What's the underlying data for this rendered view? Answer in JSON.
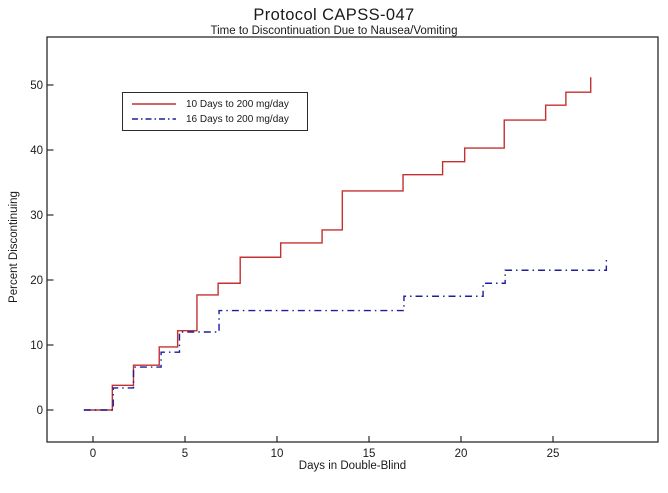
{
  "header": {
    "title": "Protocol CAPSS-047",
    "subtitle": "Time to Discontinuation Due to Nausea/Vomiting"
  },
  "chart_data": {
    "type": "line",
    "subtype": "step",
    "title": "Protocol CAPSS-047",
    "subtitle": "Time to Discontinuation Due to Nausea/Vomiting",
    "xlabel": "Days in Double-Blind",
    "ylabel": "Percent Discontinuing",
    "xlim": [
      0,
      25
    ],
    "ylim": [
      0,
      50
    ],
    "xticks": [
      0,
      5,
      10,
      15,
      20,
      25
    ],
    "yticks": [
      0,
      10,
      20,
      30,
      40,
      50
    ],
    "grid": false,
    "legend_position": "upper-left-inside",
    "frame_color": "#2b2b2b",
    "text_color": "#1a1a1a",
    "series": [
      {
        "name": "10 Days to 200 mg/day",
        "color": "#c43131",
        "dash": "solid",
        "points": [
          [
            -0.5,
            0
          ],
          [
            1.05,
            3.8
          ],
          [
            2.2,
            6.9
          ],
          [
            3.6,
            9.7
          ],
          [
            4.6,
            12.2
          ],
          [
            5.65,
            17.7
          ],
          [
            6.8,
            19.5
          ],
          [
            8.0,
            23.5
          ],
          [
            10.2,
            25.7
          ],
          [
            12.45,
            27.7
          ],
          [
            13.55,
            33.7
          ],
          [
            16.85,
            36.2
          ],
          [
            19.0,
            38.2
          ],
          [
            20.2,
            40.3
          ],
          [
            22.35,
            44.6
          ],
          [
            24.6,
            46.9
          ],
          [
            25.7,
            48.9
          ],
          [
            27.05,
            51.2
          ]
        ]
      },
      {
        "name": "16 Days to 200 mg/day",
        "color": "#1e1e9c",
        "dash": "dash-dot",
        "points": [
          [
            -0.5,
            0
          ],
          [
            1.1,
            3.4
          ],
          [
            2.2,
            6.6
          ],
          [
            3.7,
            8.9
          ],
          [
            4.7,
            12.0
          ],
          [
            6.85,
            15.3
          ],
          [
            16.9,
            17.5
          ],
          [
            21.2,
            19.5
          ],
          [
            22.4,
            21.5
          ],
          [
            27.9,
            23.5
          ]
        ]
      }
    ]
  }
}
